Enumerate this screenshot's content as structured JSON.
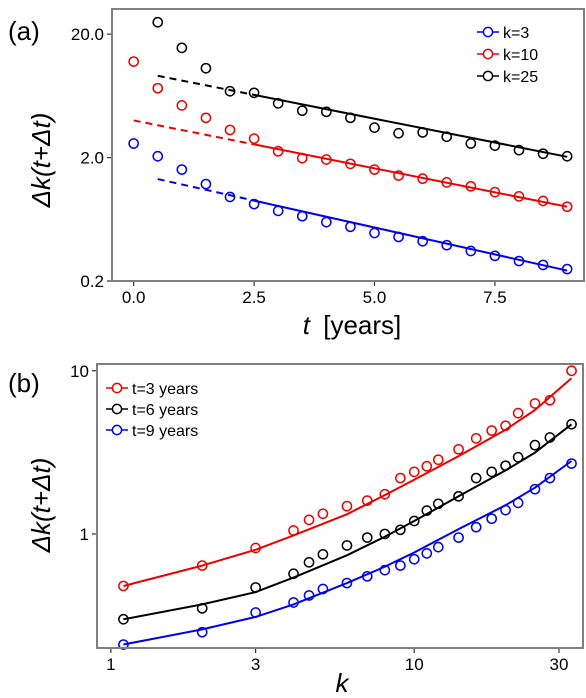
{
  "chart_data": [
    {
      "panel_label": "(a)",
      "type": "scatter",
      "xlabel_var": "t",
      "xlabel_unit": "[years]",
      "ylabel": "Δk(t+Δt)",
      "xlim": [
        -0.45,
        9.35
      ],
      "ylim": [
        0.2,
        32
      ],
      "yscale": "log",
      "xticks": [
        0,
        2.5,
        5,
        7.5
      ],
      "xtick_labels": [
        "0.0",
        "2.5",
        "5.0",
        "7.5"
      ],
      "yticks": [
        0.2,
        2,
        20
      ],
      "ytick_labels": [
        "0.2",
        "2.0",
        "20.0"
      ],
      "legend_position": "top-right",
      "grid": false,
      "series": [
        {
          "name": "k=3",
          "color": "#0000ee",
          "x": [
            0,
            0.5,
            1,
            1.5,
            2,
            2.5,
            3,
            3.5,
            4,
            4.5,
            5,
            5.5,
            6,
            6.5,
            7,
            7.5,
            8,
            8.5,
            9
          ],
          "y": [
            2.6,
            2.05,
            1.6,
            1.22,
            0.96,
            0.84,
            0.74,
            0.67,
            0.6,
            0.55,
            0.49,
            0.455,
            0.42,
            0.39,
            0.35,
            0.32,
            0.29,
            0.27,
            0.25
          ],
          "fit_x": [
            0.5,
            9
          ],
          "fit_y": [
            1.34,
            0.243
          ],
          "fit_dashed_until": 2.5
        },
        {
          "name": "k=10",
          "color": "#ee0000",
          "x": [
            0,
            0.5,
            1,
            1.5,
            2,
            2.5,
            3,
            3.5,
            4,
            4.5,
            5,
            5.5,
            6,
            6.5,
            7,
            7.5,
            8,
            8.5,
            9
          ],
          "y": [
            12,
            7.3,
            5.3,
            4.2,
            3.35,
            2.85,
            2.25,
            1.98,
            1.93,
            1.78,
            1.6,
            1.43,
            1.35,
            1.26,
            1.17,
            1.05,
            0.97,
            0.89,
            0.8
          ],
          "fit_x": [
            0,
            9
          ],
          "fit_y": [
            4,
            0.8
          ],
          "fit_dashed_until": 2.5
        },
        {
          "name": "k=25",
          "color": "#000000",
          "x": [
            0.5,
            1,
            1.5,
            2,
            2.5,
            3,
            3.5,
            4,
            4.5,
            5,
            5.5,
            6,
            6.5,
            7,
            7.5,
            8,
            8.5,
            9
          ],
          "y": [
            25,
            15.5,
            10.6,
            6.9,
            6.7,
            5.5,
            4.8,
            4.7,
            4.2,
            3.5,
            3.15,
            3.2,
            2.95,
            2.6,
            2.5,
            2.3,
            2.15,
            2.05
          ],
          "fit_x": [
            0.5,
            9
          ],
          "fit_y": [
            9.2,
            2.03
          ],
          "fit_dashed_until": 2.5
        }
      ]
    },
    {
      "panel_label": "(b)",
      "type": "scatter",
      "xlabel_var": "k",
      "ylabel": "Δk(t+Δt)",
      "xlim": [
        0.9,
        36
      ],
      "ylim": [
        0.2,
        11
      ],
      "xscale": "log",
      "yscale": "log",
      "xticks": [
        1,
        3,
        10,
        30
      ],
      "xtick_labels": [
        "1",
        "3",
        "10",
        "30"
      ],
      "yticks": [
        1,
        10
      ],
      "ytick_labels": [
        "1",
        "10"
      ],
      "legend_position": "top-left",
      "grid": false,
      "series": [
        {
          "name": "t=3 years",
          "color": "#ee0000",
          "x": [
            1.1,
            2,
            3,
            4,
            4.5,
            5,
            6,
            7,
            8,
            9,
            10,
            11,
            12,
            14,
            16,
            18,
            20,
            22,
            25,
            28,
            33
          ],
          "y": [
            0.48,
            0.64,
            0.82,
            1.05,
            1.22,
            1.33,
            1.48,
            1.6,
            1.75,
            2.2,
            2.4,
            2.6,
            2.85,
            3.3,
            3.85,
            4.3,
            4.6,
            5.5,
            6.3,
            6.6,
            10
          ],
          "fit_x": [
            1.1,
            2,
            3,
            4,
            6,
            8,
            10,
            14,
            20,
            25,
            33
          ],
          "fit_y": [
            0.48,
            0.64,
            0.8,
            0.98,
            1.32,
            1.73,
            2.15,
            3.0,
            4.35,
            5.75,
            9.0
          ]
        },
        {
          "name": "t=6 years",
          "color": "#000000",
          "x": [
            1.1,
            2,
            3,
            4,
            4.5,
            5,
            6,
            7,
            8,
            9,
            10,
            11,
            12,
            14,
            16,
            18,
            20,
            22,
            25,
            28,
            33
          ],
          "y": [
            0.3,
            0.35,
            0.47,
            0.57,
            0.67,
            0.75,
            0.85,
            0.95,
            1.0,
            1.06,
            1.2,
            1.39,
            1.53,
            1.7,
            2.2,
            2.4,
            2.62,
            2.95,
            3.5,
            3.9,
            4.7
          ],
          "fit_x": [
            1.1,
            2,
            3,
            4,
            6,
            8,
            10,
            14,
            20,
            25,
            33
          ],
          "fit_y": [
            0.3,
            0.37,
            0.44,
            0.54,
            0.74,
            0.96,
            1.2,
            1.7,
            2.45,
            3.15,
            4.7
          ]
        },
        {
          "name": "t=9 years",
          "color": "#0000ee",
          "x": [
            1.1,
            2,
            3,
            4,
            4.5,
            5,
            6,
            7,
            8,
            9,
            10,
            11,
            12,
            14,
            16,
            18,
            20,
            22,
            25,
            28,
            33
          ],
          "y": [
            0.21,
            0.25,
            0.33,
            0.38,
            0.42,
            0.46,
            0.5,
            0.55,
            0.6,
            0.64,
            0.7,
            0.76,
            0.83,
            0.95,
            1.1,
            1.24,
            1.4,
            1.55,
            1.88,
            2.2,
            2.7
          ],
          "fit_x": [
            1.1,
            2,
            3,
            4,
            6,
            8,
            10,
            14,
            20,
            25,
            33
          ],
          "fit_y": [
            0.21,
            0.26,
            0.31,
            0.37,
            0.5,
            0.63,
            0.77,
            1.07,
            1.5,
            1.92,
            2.8
          ]
        }
      ]
    }
  ]
}
